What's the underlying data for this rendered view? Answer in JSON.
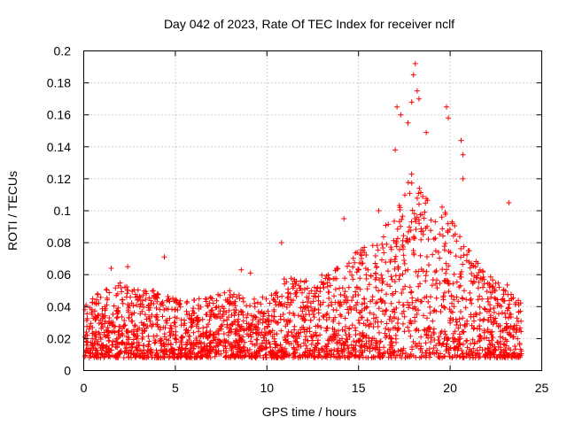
{
  "chart_data": {
    "type": "scatter",
    "title": "Day 042 of 2023, Rate Of TEC Index for receiver nclf",
    "xlabel": "GPS time / hours",
    "ylabel": "ROTI / TECUs",
    "xlim": [
      0,
      25
    ],
    "ylim": [
      0,
      0.2
    ],
    "xticks": [
      0,
      5,
      10,
      15,
      20,
      25
    ],
    "yticks": [
      0,
      0.02,
      0.04,
      0.06,
      0.08,
      0.1,
      0.12,
      0.14,
      0.16,
      0.18,
      0.2
    ],
    "xtick_labels": [
      "0",
      "5",
      "10",
      "15",
      "20",
      "25"
    ],
    "ytick_labels": [
      "0",
      "0.02",
      "0.04",
      "0.06",
      "0.08",
      "0.1",
      "0.12",
      "0.14",
      "0.16",
      "0.18",
      "0.2"
    ],
    "grid": true,
    "marker": "+",
    "color": "#ff0000",
    "envelope": {
      "description": "Approximate upper envelope of the dense point cloud (hour, ROTI)",
      "hours": [
        0,
        1,
        2,
        3,
        4,
        5,
        6,
        7,
        8,
        9,
        10,
        11,
        12,
        13,
        14,
        15,
        16,
        17,
        18,
        19,
        20,
        21,
        22,
        23,
        24
      ],
      "upper": [
        0.04,
        0.05,
        0.055,
        0.05,
        0.05,
        0.045,
        0.045,
        0.045,
        0.05,
        0.045,
        0.045,
        0.06,
        0.055,
        0.06,
        0.07,
        0.075,
        0.085,
        0.1,
        0.13,
        0.11,
        0.1,
        0.08,
        0.06,
        0.055,
        0.04
      ],
      "lower": [
        0.005,
        0.005,
        0.005,
        0.005,
        0.005,
        0.005,
        0.005,
        0.005,
        0.005,
        0.005,
        0.005,
        0.005,
        0.005,
        0.005,
        0.005,
        0.005,
        0.005,
        0.005,
        0.005,
        0.005,
        0.005,
        0.005,
        0.005,
        0.005,
        0.005
      ]
    },
    "notable_points": [
      {
        "x": 18.1,
        "y": 0.192
      },
      {
        "x": 18.0,
        "y": 0.185
      },
      {
        "x": 18.2,
        "y": 0.175
      },
      {
        "x": 18.3,
        "y": 0.17
      },
      {
        "x": 17.9,
        "y": 0.168
      },
      {
        "x": 17.1,
        "y": 0.165
      },
      {
        "x": 17.3,
        "y": 0.16
      },
      {
        "x": 19.8,
        "y": 0.165
      },
      {
        "x": 19.9,
        "y": 0.158
      },
      {
        "x": 17.7,
        "y": 0.155
      },
      {
        "x": 18.7,
        "y": 0.149
      },
      {
        "x": 20.6,
        "y": 0.144
      },
      {
        "x": 17.0,
        "y": 0.138
      },
      {
        "x": 20.7,
        "y": 0.135
      },
      {
        "x": 20.7,
        "y": 0.12
      },
      {
        "x": 23.2,
        "y": 0.105
      },
      {
        "x": 16.1,
        "y": 0.1
      },
      {
        "x": 14.2,
        "y": 0.095
      },
      {
        "x": 10.8,
        "y": 0.08
      },
      {
        "x": 4.4,
        "y": 0.071
      },
      {
        "x": 2.4,
        "y": 0.065
      },
      {
        "x": 1.5,
        "y": 0.064
      },
      {
        "x": 8.6,
        "y": 0.063
      },
      {
        "x": 9.1,
        "y": 0.061
      }
    ]
  }
}
